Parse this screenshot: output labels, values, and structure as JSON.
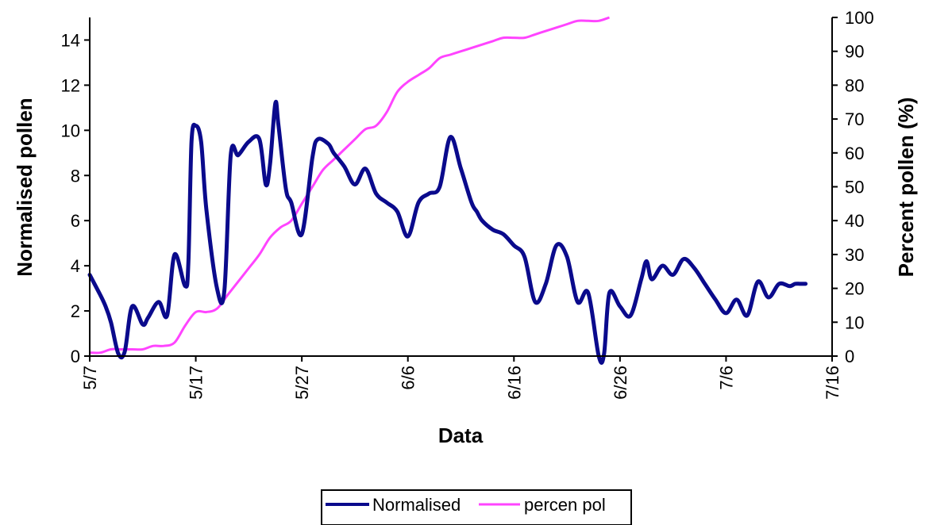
{
  "chart_data": {
    "type": "line",
    "xlabel": "Data",
    "ylabel_left": "Normalised pollen",
    "ylabel_right": "Percent pollen (%)",
    "x_start": "5/7",
    "x_end": "7/16",
    "xtick_labels": [
      "5/7",
      "5/17",
      "5/27",
      "6/6",
      "6/16",
      "6/26",
      "7/6",
      "7/16"
    ],
    "ylim_left": [
      0,
      15
    ],
    "yticks_left": [
      "0",
      "2",
      "4",
      "6",
      "8",
      "10",
      "12",
      "14"
    ],
    "ylim_right": [
      0,
      100
    ],
    "yticks_right": [
      "0",
      "10",
      "20",
      "30",
      "40",
      "50",
      "60",
      "70",
      "80",
      "90",
      "100"
    ],
    "grid": false,
    "legend_position": "bottom-center",
    "series": [
      {
        "name": "Normalised",
        "axis": "left",
        "color": "#0a0a8c",
        "x": [
          "5/7",
          "5/8",
          "5/9",
          "5/10",
          "5/10",
          "5/11",
          "5/12",
          "5/13",
          "5/13",
          "5/14",
          "5/15",
          "5/16",
          "5/16",
          "5/17",
          "5/17",
          "5/18",
          "5/18",
          "5/19",
          "5/20",
          "5/21",
          "5/21",
          "5/22",
          "5/22",
          "5/23",
          "5/24",
          "5/24",
          "5/25",
          "5/25",
          "5/26",
          "5/26",
          "5/27",
          "5/28",
          "5/28",
          "5/29",
          "5/29",
          "5/30",
          "5/31",
          "6/1",
          "6/2",
          "6/3",
          "6/4",
          "6/5",
          "6/6",
          "6/7",
          "6/8",
          "6/8",
          "6/9",
          "6/10",
          "6/10",
          "6/11",
          "6/12",
          "6/13",
          "6/14",
          "6/15",
          "6/16",
          "6/17",
          "6/18",
          "6/19",
          "6/20",
          "6/21",
          "6/22",
          "6/23",
          "6/24",
          "6/25",
          "6/26",
          "6/27",
          "6/27",
          "6/28",
          "6/29",
          "6/30",
          "7/1",
          "7/2",
          "7/3",
          "7/4",
          "7/5",
          "7/6",
          "7/7",
          "7/8",
          "7/9",
          "7/10",
          "7/11",
          "7/12",
          "7/13",
          "7/14"
        ],
        "values": [
          3.6,
          2.7,
          2.2,
          1.5,
          0.1,
          0.2,
          2.2,
          1.4,
          1.7,
          2.4,
          1.8,
          4.5,
          3.1,
          4.1,
          9.5,
          10.2,
          9.5,
          6.5,
          3.0,
          2.9,
          8.9,
          8.9,
          9.5,
          9.6,
          7.6,
          8.5,
          11.2,
          10.2,
          7.4,
          6.8,
          5.4,
          8.8,
          9.6,
          9.4,
          9.0,
          8.4,
          7.6,
          8.3,
          7.2,
          6.8,
          6.4,
          5.3,
          6.8,
          7.2,
          7.5,
          9.7,
          8.3,
          6.8,
          6.4,
          6.0,
          5.6,
          5.4,
          4.9,
          4.4,
          2.4,
          3.2,
          4.9,
          4.4,
          2.4,
          2.8,
          0.0,
          0.1,
          2.8,
          2.2,
          1.8,
          3.4,
          4.2,
          3.4,
          4.0,
          3.6,
          4.3,
          3.9,
          3.2,
          2.5,
          1.9,
          2.5,
          1.8,
          3.3,
          2.6,
          3.2,
          3.1,
          3.2,
          3.2,
          3.2
        ],
        "days": [
          0,
          1,
          1.5,
          2,
          2.7,
          3.3,
          4,
          5,
          5.5,
          6.5,
          7.3,
          8,
          9,
          9.3,
          9.6,
          10,
          10.5,
          11,
          12,
          12.7,
          13.3,
          14,
          15,
          16,
          16.6,
          17,
          17.5,
          17.8,
          18.5,
          19,
          20,
          21,
          21.5,
          22.5,
          23,
          24,
          25,
          26,
          27,
          28,
          29,
          30,
          31,
          32,
          33,
          34,
          35,
          36,
          36.5,
          37,
          38,
          39,
          40,
          41,
          42,
          43,
          44,
          45,
          46,
          47,
          48,
          48.5,
          49,
          50,
          51,
          52,
          52.5,
          53,
          54,
          55,
          56,
          57,
          58,
          59,
          60,
          61,
          62,
          63,
          64,
          65,
          66,
          66.5,
          67,
          67.5
        ]
      },
      {
        "name": "percen pol",
        "axis": "right",
        "color": "#ff44ff",
        "values": [
          1,
          1,
          2,
          2,
          2,
          2,
          3,
          3,
          4,
          9,
          13,
          13,
          14,
          18,
          22,
          26,
          30,
          35,
          38,
          40,
          45,
          50,
          55,
          58,
          61,
          64,
          67,
          68,
          72,
          78,
          81,
          83,
          85,
          88,
          89,
          90,
          91,
          92,
          93,
          94,
          94,
          94,
          95,
          96,
          97,
          98,
          99,
          99,
          99,
          100
        ],
        "days": [
          0,
          1,
          2,
          3,
          4,
          5,
          6,
          7,
          8,
          9,
          10,
          11,
          12,
          13,
          14,
          15,
          16,
          17,
          18,
          19,
          20,
          21,
          22,
          23,
          24,
          25,
          26,
          27,
          28,
          29,
          30,
          31,
          32,
          33,
          34,
          35,
          36,
          37,
          38,
          39,
          40,
          41,
          42,
          43,
          44,
          45,
          46,
          47,
          48,
          49
        ]
      }
    ]
  }
}
